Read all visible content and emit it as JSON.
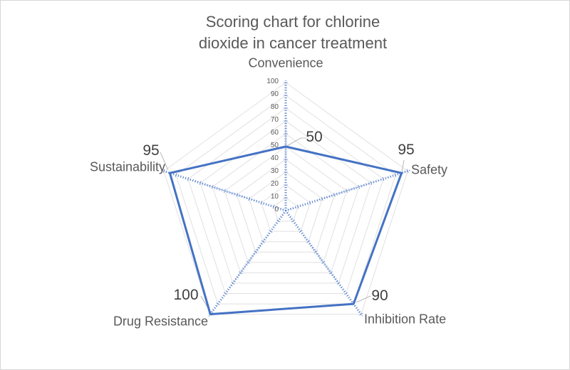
{
  "chart_data": {
    "type": "radar",
    "title": "Scoring chart for chlorine dioxide in cancer treatment",
    "title_lines": [
      "Scoring chart for chlorine",
      "dioxide in cancer treatment"
    ],
    "categories": [
      "Convenience",
      "Safety",
      "Inhibition Rate",
      "Drug Resistance",
      "Sustainability"
    ],
    "values": [
      50,
      95,
      90,
      100,
      95
    ],
    "axis": {
      "min": 0,
      "max": 100,
      "major_tick": 10,
      "minor_tick": 2,
      "tick_labels": [
        "0",
        "10",
        "20",
        "30",
        "40",
        "50",
        "60",
        "70",
        "80",
        "90",
        "100"
      ]
    },
    "grid": "pentagon-rings",
    "legend": "none",
    "colors": {
      "series": "#4472C4",
      "spoke": "#4472C4",
      "grid": "#e0e0e0",
      "leader": "#a6a6a6",
      "title_text": "#595959",
      "category_text": "#595959",
      "data_label_text": "#404040",
      "tick_text": "#595959",
      "background": "#ffffff",
      "border": "#d7d7d7"
    }
  }
}
